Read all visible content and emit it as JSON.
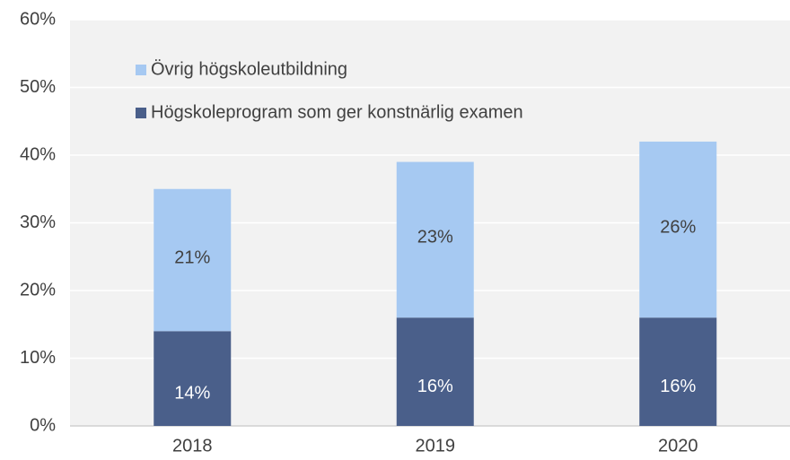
{
  "chart_data": {
    "type": "stacked_bar",
    "categories": [
      "2018",
      "2019",
      "2020"
    ],
    "series": [
      {
        "name": "Högskoleprogram som ger konstnärlig examen",
        "color": "#4a5f8a",
        "values": [
          14,
          16,
          16
        ],
        "value_labels": [
          "14%",
          "16%",
          "16%"
        ]
      },
      {
        "name": "Övrig högskoleutbildning",
        "color": "#a6c9f2",
        "values": [
          21,
          23,
          26
        ],
        "value_labels": [
          "21%",
          "23%",
          "26%"
        ]
      }
    ],
    "ylim": [
      0,
      60
    ],
    "yticks": [
      {
        "value": 0,
        "label": "0%"
      },
      {
        "value": 10,
        "label": "10%"
      },
      {
        "value": 20,
        "label": "20%"
      },
      {
        "value": 30,
        "label": "30%"
      },
      {
        "value": 40,
        "label": "40%"
      },
      {
        "value": 50,
        "label": "50%"
      },
      {
        "value": 60,
        "label": "60%"
      }
    ],
    "grid": true,
    "legend": "upper-left"
  }
}
